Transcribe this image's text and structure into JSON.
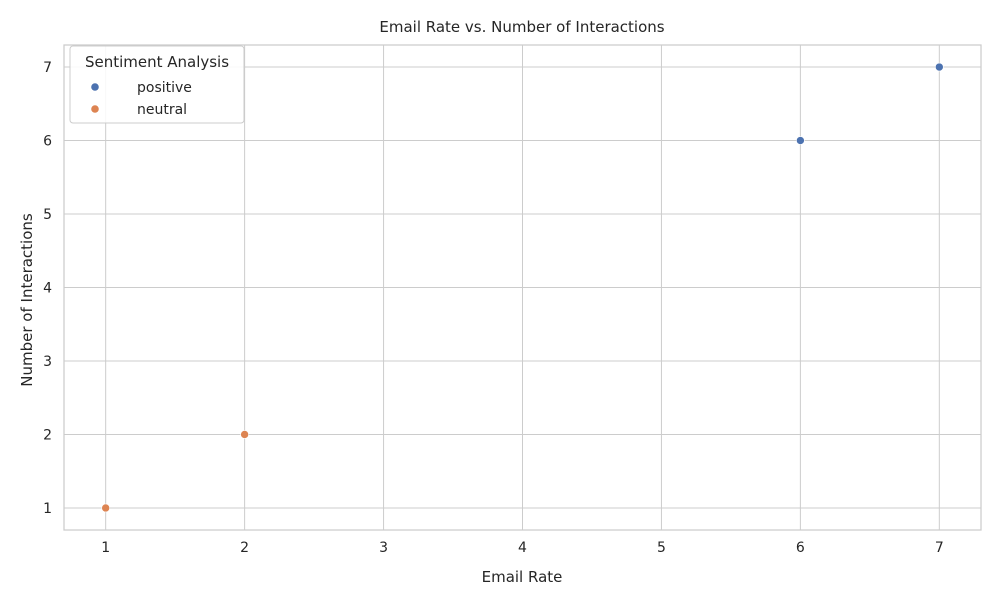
{
  "chart_data": {
    "type": "scatter",
    "title": "Email Rate vs. Number of Interactions",
    "xlabel": "Email Rate",
    "ylabel": "Number of Interactions",
    "xlim": [
      0.7,
      7.3
    ],
    "ylim": [
      0.7,
      7.3
    ],
    "xticks": [
      1,
      2,
      3,
      4,
      5,
      6,
      7
    ],
    "yticks": [
      1,
      2,
      3,
      4,
      5,
      6,
      7
    ],
    "grid": true,
    "legend": {
      "title": "Sentiment Analysis",
      "placement": "top-left"
    },
    "series": [
      {
        "name": "positive",
        "color": "#4c72b0",
        "points": [
          {
            "x": 6,
            "y": 6
          },
          {
            "x": 7,
            "y": 7
          }
        ]
      },
      {
        "name": "neutral",
        "color": "#dd8452",
        "points": [
          {
            "x": 1,
            "y": 1
          },
          {
            "x": 2,
            "y": 2
          }
        ]
      }
    ]
  }
}
